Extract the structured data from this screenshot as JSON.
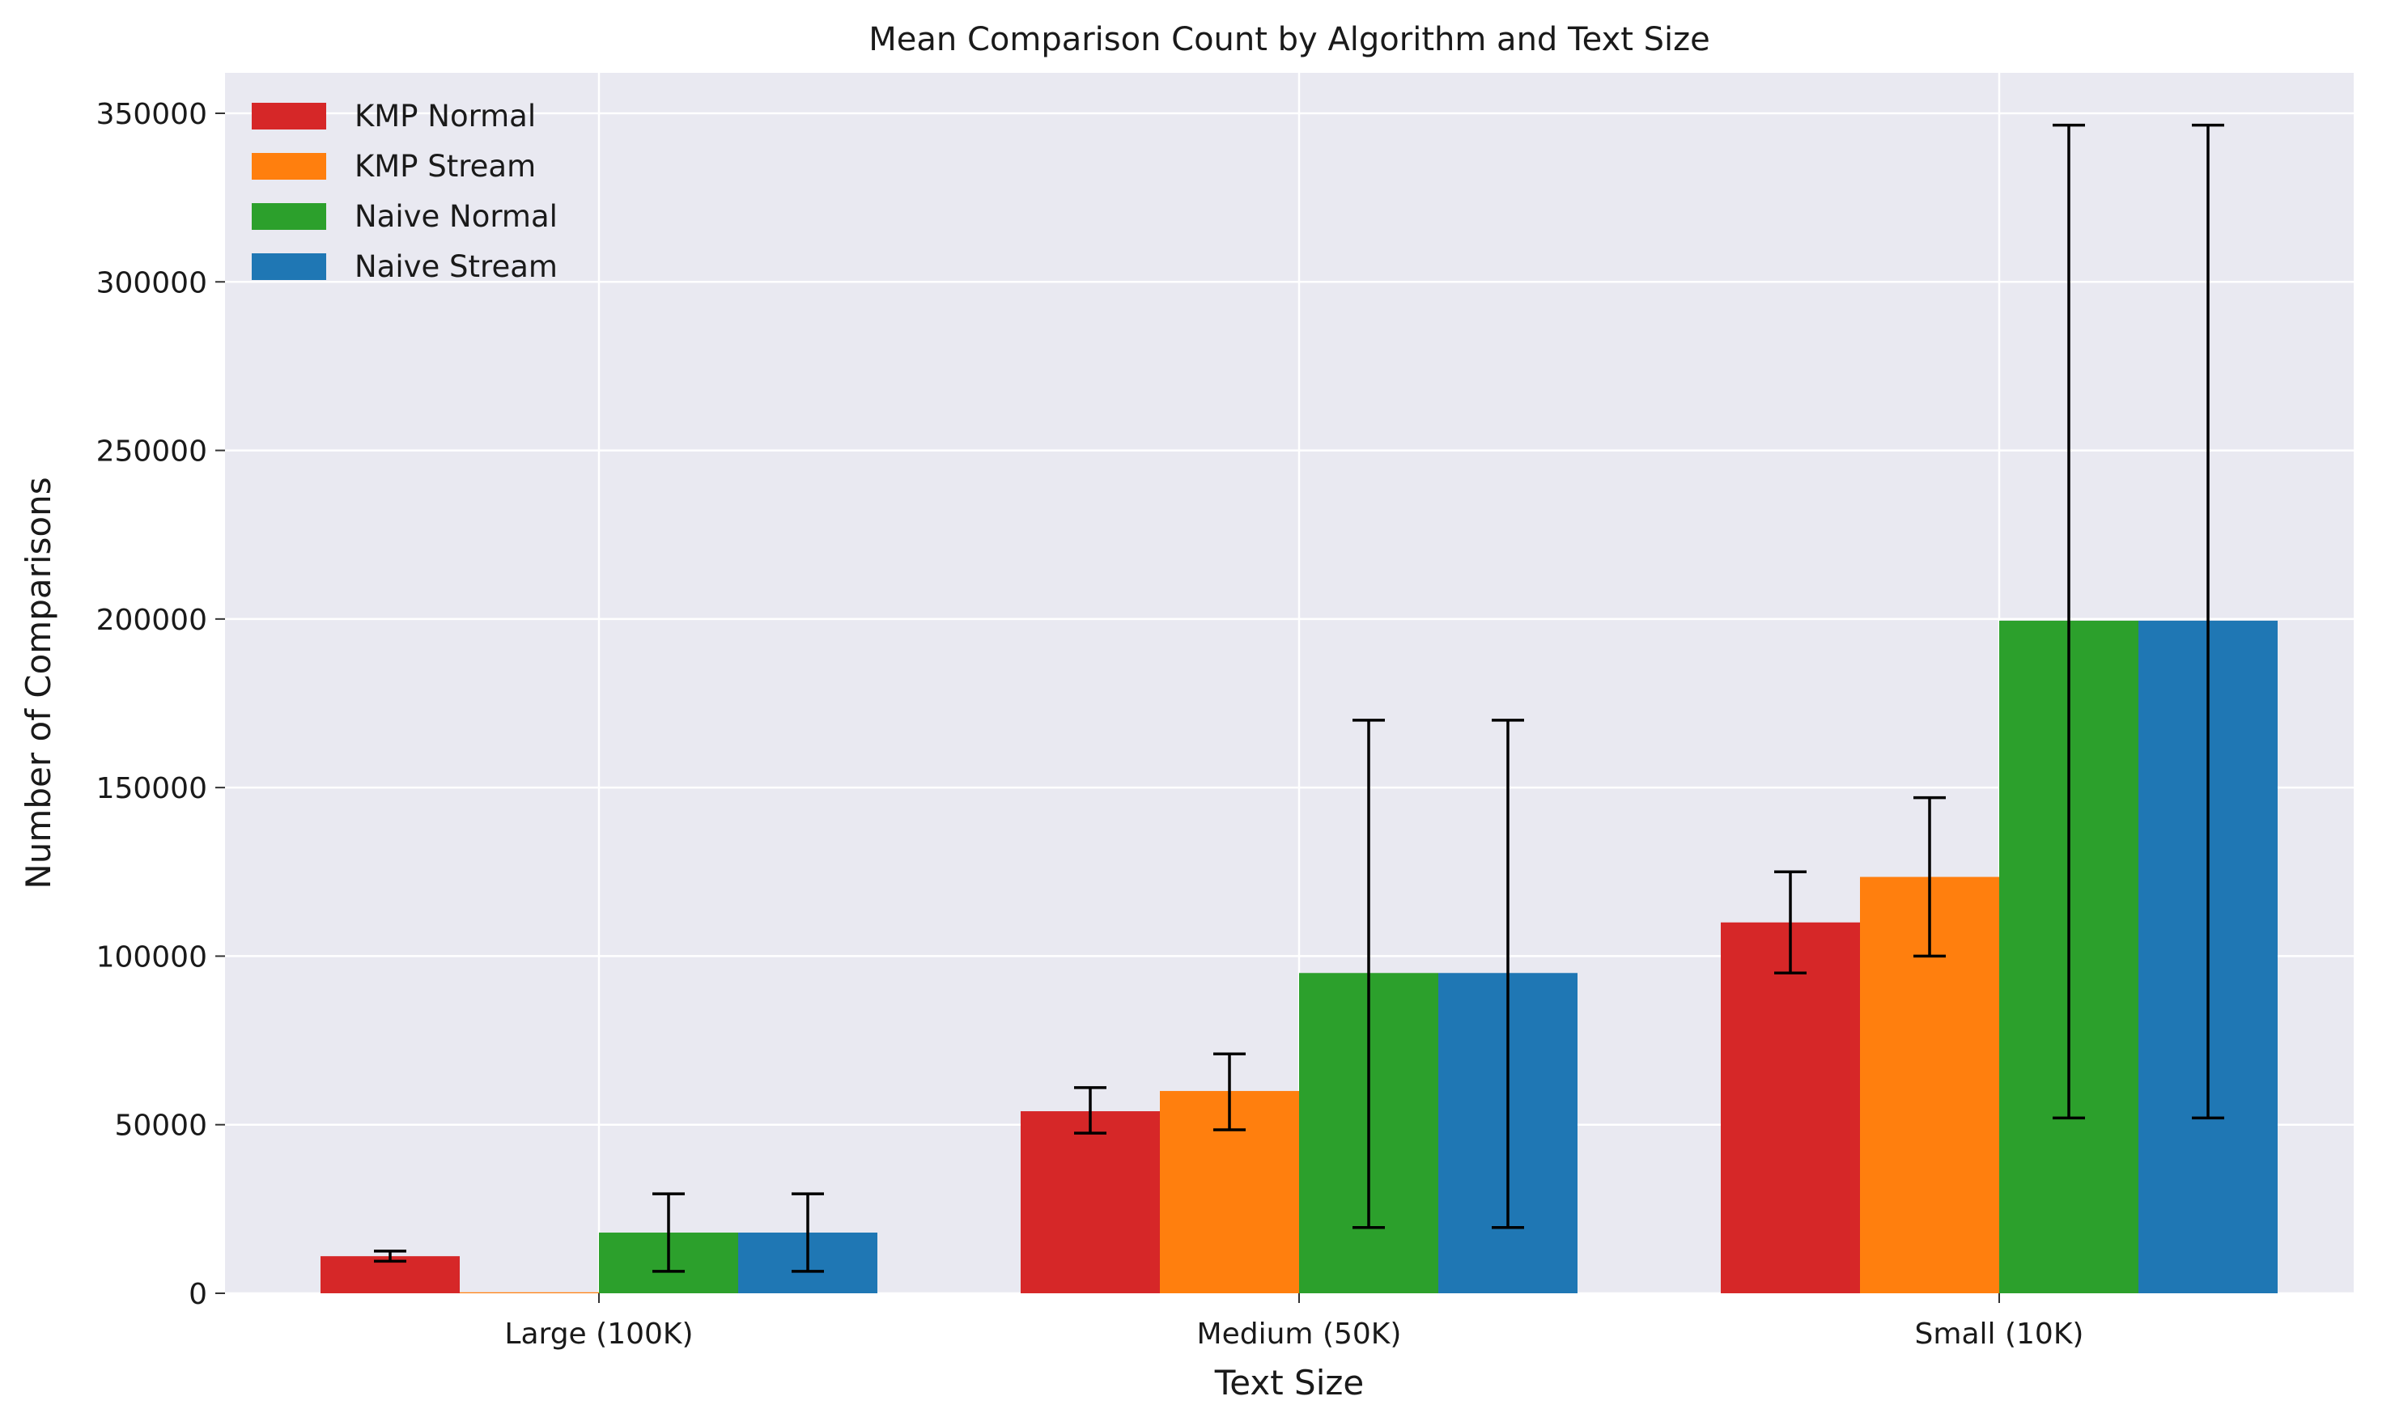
{
  "chart_data": {
    "type": "bar",
    "title": "Mean Comparison Count by Algorithm and Text Size",
    "xlabel": "Text Size",
    "ylabel": "Number of Comparisons",
    "categories": [
      "Large (100K)",
      "Medium (50K)",
      "Small (10K)"
    ],
    "ylim": [
      0,
      362000
    ],
    "yticks": [
      0,
      50000,
      100000,
      150000,
      200000,
      250000,
      300000,
      350000
    ],
    "ytick_labels": [
      "0",
      "50000",
      "100000",
      "150000",
      "200000",
      "250000",
      "300000",
      "350000"
    ],
    "grid": true,
    "legend_position": "top-left",
    "error_bars": true,
    "series": [
      {
        "name": "KMP Normal",
        "color": "#d62728",
        "values": [
          11000,
          54000,
          110000
        ],
        "err_low": [
          9500,
          47500,
          95000
        ],
        "err_high": [
          12500,
          61000,
          125000
        ]
      },
      {
        "name": "KMP Stream",
        "color": "#ff7f0e",
        "values": [
          300,
          60000,
          123500
        ],
        "err_low": [
          null,
          48500,
          100000
        ],
        "err_high": [
          null,
          71000,
          147000
        ]
      },
      {
        "name": "Naive Normal",
        "color": "#2ca02c",
        "values": [
          18000,
          95000,
          199500
        ],
        "err_low": [
          6500,
          19500,
          52000
        ],
        "err_high": [
          29500,
          170000,
          346500
        ]
      },
      {
        "name": "Naive Stream",
        "color": "#1f77b4",
        "values": [
          18000,
          95000,
          199500
        ],
        "err_low": [
          6500,
          19500,
          52000
        ],
        "err_high": [
          29500,
          170000,
          346500
        ]
      }
    ]
  }
}
